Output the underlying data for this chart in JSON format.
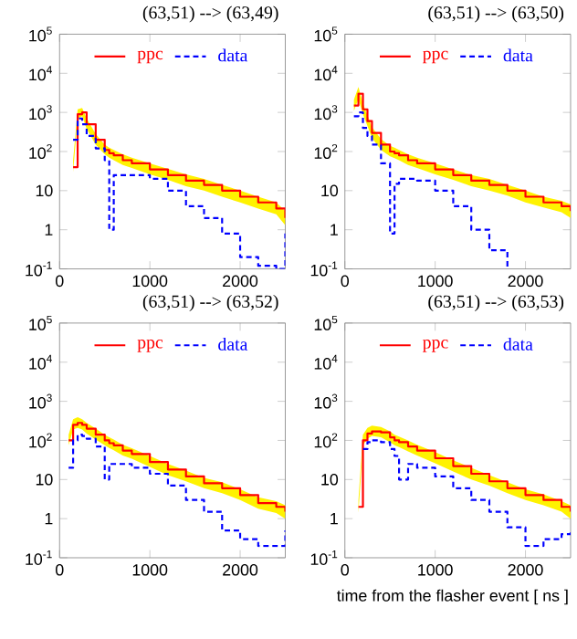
{
  "chart_data": [
    {
      "type": "step",
      "title": "(63,51) --> (63,49)",
      "log": "y",
      "legend": "top",
      "xlim": [
        0,
        2500
      ],
      "ylim": [
        0.1,
        100000
      ],
      "xticks": [
        0,
        1000,
        2000
      ],
      "yticks": [
        {
          "value": 0.1,
          "label": "10$^{-1}$"
        },
        1,
        10,
        {
          "value": 100,
          "label": "10$^{2}$"
        },
        {
          "value": 1000,
          "label": "10$^{3}$"
        },
        {
          "value": 10000,
          "label": "10$^{4}$"
        },
        {
          "value": 100000,
          "label": "10$^{5}$"
        }
      ],
      "x": [
        150,
        200,
        250,
        300,
        400,
        500,
        550,
        600,
        700,
        800,
        1000,
        1200,
        1400,
        1600,
        1800,
        2000,
        2200,
        2400,
        2500
      ],
      "series": [
        {
          "name": "ppc",
          "color": "#ff0000",
          "line_style": "solid",
          "values": [
            40,
            900,
            1000,
            500,
            200,
            110,
            90,
            80,
            60,
            50,
            35,
            25,
            18,
            14,
            10,
            7,
            5,
            3.5,
            2
          ],
          "upper": [
            60,
            1200,
            1300,
            700,
            280,
            150,
            125,
            110,
            85,
            70,
            50,
            36,
            26,
            20,
            14,
            10,
            7,
            5,
            3
          ],
          "lower": [
            30,
            700,
            800,
            380,
            150,
            85,
            70,
            60,
            45,
            38,
            26,
            19,
            13,
            10,
            7,
            5,
            3.5,
            2.5,
            1.3
          ]
        },
        {
          "name": "data",
          "color": "#0000ff",
          "line_style": "dotted",
          "values": [
            200,
            700,
            500,
            250,
            120,
            60,
            1,
            25,
            25,
            25,
            20,
            10,
            4,
            2,
            0.8,
            0.2,
            0.12,
            0.1,
            0.8
          ]
        }
      ]
    },
    {
      "type": "step",
      "title": "(63,51) --> (63,50)",
      "log": "y",
      "legend": "top",
      "xlim": [
        0,
        2500
      ],
      "ylim": [
        0.1,
        100000
      ],
      "xticks": [
        0,
        1000,
        2000
      ],
      "yticks": [
        {
          "value": 0.1,
          "label": "10$^{-1}$"
        },
        1,
        10,
        {
          "value": 100,
          "label": "10$^{2}$"
        },
        {
          "value": 1000,
          "label": "10$^{3}$"
        },
        {
          "value": 10000,
          "label": "10$^{4}$"
        },
        {
          "value": 100000,
          "label": "10$^{5}$"
        }
      ],
      "x": [
        100,
        150,
        200,
        250,
        300,
        400,
        500,
        550,
        600,
        700,
        800,
        1000,
        1200,
        1400,
        1600,
        1800,
        2000,
        2200,
        2400,
        2500
      ],
      "series": [
        {
          "name": "ppc",
          "color": "#ff0000",
          "line_style": "solid",
          "values": [
            1500,
            3000,
            1200,
            600,
            300,
            150,
            100,
            90,
            80,
            60,
            50,
            35,
            25,
            18,
            14,
            10,
            7,
            5,
            4,
            3
          ],
          "upper": [
            2100,
            4500,
            1700,
            850,
            420,
            210,
            140,
            125,
            110,
            85,
            70,
            50,
            35,
            25,
            20,
            14,
            10,
            7,
            5.5,
            4.5
          ],
          "lower": [
            1100,
            2200,
            900,
            450,
            220,
            110,
            75,
            68,
            60,
            45,
            38,
            26,
            19,
            13,
            10,
            7.5,
            5,
            3.7,
            2.8,
            2
          ]
        },
        {
          "name": "data",
          "color": "#0000ff",
          "line_style": "dotted",
          "values": [
            800,
            1000,
            400,
            250,
            150,
            50,
            0.8,
            15,
            20,
            20,
            18,
            10,
            4,
            1,
            0.3,
            0.1,
            null,
            null,
            null,
            null
          ]
        }
      ]
    },
    {
      "type": "step",
      "title": "(63,51) --> (63,52)",
      "log": "y",
      "legend": "top",
      "xlim": [
        0,
        2500
      ],
      "ylim": [
        0.1,
        100000
      ],
      "xticks": [
        0,
        1000,
        2000
      ],
      "yticks": [
        {
          "value": 0.1,
          "label": "10$^{-1}$"
        },
        1,
        10,
        {
          "value": 100,
          "label": "10$^{2}$"
        },
        {
          "value": 1000,
          "label": "10$^{3}$"
        },
        {
          "value": 10000,
          "label": "10$^{4}$"
        },
        {
          "value": 100000,
          "label": "10$^{5}$"
        }
      ],
      "x": [
        100,
        150,
        200,
        250,
        300,
        400,
        500,
        550,
        600,
        700,
        800,
        1000,
        1200,
        1400,
        1600,
        1800,
        2000,
        2200,
        2400,
        2500
      ],
      "series": [
        {
          "name": "ppc",
          "color": "#ff0000",
          "line_style": "solid",
          "values": [
            100,
            250,
            280,
            250,
            200,
            140,
            100,
            85,
            75,
            55,
            45,
            28,
            18,
            12,
            8,
            6,
            4,
            2.5,
            2,
            1.5
          ],
          "upper": [
            140,
            350,
            390,
            350,
            280,
            200,
            140,
            120,
            105,
            77,
            63,
            40,
            25,
            17,
            11,
            8.5,
            5.6,
            3.5,
            2.8,
            2.2
          ],
          "lower": [
            75,
            190,
            210,
            190,
            150,
            105,
            75,
            64,
            56,
            41,
            34,
            21,
            13,
            9,
            6,
            4.5,
            3,
            1.8,
            1.4,
            1
          ]
        },
        {
          "name": "data",
          "color": "#0000ff",
          "line_style": "dotted",
          "values": [
            20,
            100,
            140,
            130,
            110,
            70,
            10,
            25,
            25,
            25,
            20,
            14,
            7,
            3,
            1.5,
            0.5,
            0.3,
            0.2,
            0.2,
            0.5
          ]
        }
      ]
    },
    {
      "type": "step",
      "title": "(63,51) --> (63,53)",
      "xlabel": "time from the flasher event [ ns ]",
      "log": "y",
      "legend": "top",
      "xlim": [
        0,
        2500
      ],
      "ylim": [
        0.1,
        100000
      ],
      "xticks": [
        0,
        1000,
        2000
      ],
      "yticks": [
        {
          "value": 0.1,
          "label": "10$^{-1}$"
        },
        1,
        10,
        {
          "value": 100,
          "label": "10$^{2}$"
        },
        {
          "value": 1000,
          "label": "10$^{3}$"
        },
        {
          "value": 10000,
          "label": "10$^{4}$"
        },
        {
          "value": 100000,
          "label": "10$^{5}$"
        }
      ],
      "x": [
        150,
        200,
        250,
        300,
        400,
        500,
        550,
        600,
        700,
        800,
        1000,
        1200,
        1400,
        1600,
        1800,
        2000,
        2200,
        2400,
        2500
      ],
      "series": [
        {
          "name": "ppc",
          "color": "#ff0000",
          "line_style": "solid",
          "values": [
            2,
            100,
            150,
            170,
            160,
            120,
            100,
            90,
            70,
            55,
            35,
            22,
            14,
            9,
            6,
            4,
            3,
            2,
            1.5
          ],
          "upper": [
            3,
            140,
            210,
            240,
            220,
            170,
            140,
            125,
            100,
            77,
            50,
            31,
            20,
            13,
            8.5,
            5.6,
            4.2,
            2.8,
            2.2
          ],
          "lower": [
            1.4,
            75,
            110,
            130,
            120,
            90,
            75,
            68,
            52,
            41,
            26,
            16,
            10,
            7,
            4.5,
            3,
            2.2,
            1.5,
            1
          ]
        },
        {
          "name": "data",
          "color": "#0000ff",
          "line_style": "dotted",
          "values": [
            null,
            60,
            90,
            100,
            90,
            60,
            40,
            10,
            25,
            20,
            12,
            6,
            3,
            1.5,
            0.6,
            0.2,
            0.3,
            0.4,
            0.5
          ]
        }
      ]
    }
  ]
}
